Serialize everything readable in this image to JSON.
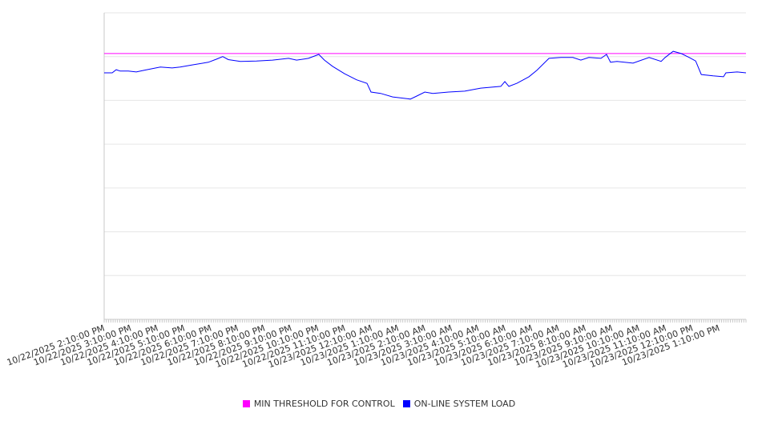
{
  "chart_data": {
    "type": "line",
    "title": "",
    "xlabel": "",
    "ylabel": "",
    "xlim": [
      0,
      24
    ],
    "ylim": [
      0,
      7
    ],
    "grid": true,
    "legend_placement": "bottom",
    "x_unit": "hours since 10/22/2025 2:10:00 PM",
    "tick_labels": [
      "10/22/2025 2:10:00 PM",
      "10/22/2025 3:10:00 PM",
      "10/22/2025 4:10:00 PM",
      "10/22/2025 5:10:00 PM",
      "10/22/2025 6:10:00 PM",
      "10/22/2025 7:10:00 PM",
      "10/22/2025 8:10:00 PM",
      "10/22/2025 9:10:00 PM",
      "10/22/2025 10:10:00 PM",
      "10/22/2025 11:10:00 PM",
      "10/23/2025 12:10:00 AM",
      "10/23/2025 1:10:00 AM",
      "10/23/2025 2:10:00 AM",
      "10/23/2025 3:10:00 AM",
      "10/23/2025 4:10:00 AM",
      "10/23/2025 5:10:00 AM",
      "10/23/2025 6:10:00 AM",
      "10/23/2025 7:10:00 AM",
      "10/23/2025 8:10:00 AM",
      "10/23/2025 9:10:00 AM",
      "10/23/2025 10:10:00 AM",
      "10/23/2025 11:10:00 AM",
      "10/23/2025 12:10:00 PM",
      "10/23/2025 1:10:00 PM"
    ],
    "series": [
      {
        "name": "MIN THRESHOLD FOR CONTROL",
        "color": "#ff00ff",
        "x": [
          0,
          24
        ],
        "y": [
          6.07,
          6.07
        ]
      },
      {
        "name": "ON-LINE SYSTEM LOAD",
        "color": "#0000ff",
        "x": [
          0,
          0.3,
          0.45,
          0.6,
          0.9,
          1.2,
          1.5,
          2.1,
          2.54,
          2.84,
          3.29,
          3.89,
          4.19,
          4.43,
          4.64,
          5.09,
          5.69,
          6.29,
          6.89,
          7.19,
          7.63,
          8.02,
          8.23,
          8.53,
          8.98,
          9.43,
          9.82,
          9.97,
          10.33,
          10.78,
          11.44,
          11.68,
          11.98,
          12.28,
          12.87,
          13.47,
          14.07,
          14.82,
          14.97,
          15.12,
          15.42,
          15.87,
          16.17,
          16.62,
          17.07,
          17.51,
          17.81,
          18.11,
          18.56,
          18.77,
          18.92,
          19.16,
          19.76,
          20.36,
          20.81,
          20.96,
          21.26,
          21.56,
          21.86,
          22.1,
          22.31,
          22.75,
          23.14,
          23.23,
          23.65,
          23.98
        ],
        "y": [
          5.63,
          5.63,
          5.7,
          5.67,
          5.67,
          5.65,
          5.69,
          5.76,
          5.74,
          5.76,
          5.81,
          5.87,
          5.94,
          6.0,
          5.93,
          5.89,
          5.9,
          5.92,
          5.96,
          5.92,
          5.96,
          6.05,
          5.92,
          5.78,
          5.61,
          5.47,
          5.39,
          5.19,
          5.16,
          5.08,
          5.03,
          5.1,
          5.19,
          5.16,
          5.19,
          5.21,
          5.28,
          5.32,
          5.43,
          5.32,
          5.39,
          5.54,
          5.69,
          5.96,
          5.98,
          5.98,
          5.92,
          5.98,
          5.96,
          6.05,
          5.87,
          5.89,
          5.85,
          5.98,
          5.89,
          5.98,
          6.12,
          6.07,
          5.98,
          5.9,
          5.59,
          5.56,
          5.54,
          5.63,
          5.65,
          5.63
        ]
      }
    ]
  }
}
